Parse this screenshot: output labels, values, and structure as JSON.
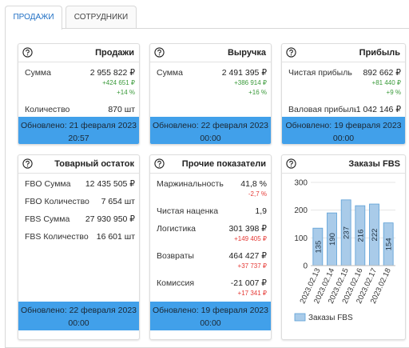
{
  "tabs": [
    "ПРОДАЖИ",
    "СОТРУДНИКИ"
  ],
  "cards": [
    {
      "title": "Продажи",
      "rows": [
        {
          "label": "Сумма",
          "value": "2 955 822 ₽",
          "changes": [
            "+424 651 ₽",
            "+14 %"
          ],
          "color": "#3a9a3a"
        },
        {
          "label": "Количество",
          "value": "870 шт"
        }
      ],
      "updated": "Обновлено: 21 февраля 2023",
      "time": "20:57"
    },
    {
      "title": "Выручка",
      "rows": [
        {
          "label": "Сумма",
          "value": "2 491 395 ₽",
          "changes": [
            "+386 914 ₽",
            "+16 %"
          ],
          "color": "#3a9a3a"
        }
      ],
      "updated": "Обновлено: 22 февраля 2023",
      "time": "00:00"
    },
    {
      "title": "Прибыль",
      "rows": [
        {
          "label": "Чистая прибыль",
          "value": "892 662 ₽",
          "changes": [
            "+81 440 ₽",
            "+9 %"
          ],
          "color": "#3a9a3a"
        },
        {
          "label": "Валовая прибыль",
          "value": "1 042 146 ₽"
        }
      ],
      "updated": "Обновлено: 19 февраля 2023",
      "time": "00:00"
    },
    {
      "title": "Товарный остаток",
      "rows": [
        {
          "label": "FBO Сумма",
          "value": "12 435 505 ₽"
        },
        {
          "label": "FBO Количество",
          "value": "7 654 шт"
        },
        {
          "label": "FBS Сумма",
          "value": "27 930 950 ₽"
        },
        {
          "label": "FBS Количество",
          "value": "16 601 шт"
        }
      ],
      "updated": "Обновлено: 22 февраля 2023",
      "time": "00:00"
    },
    {
      "title": "Прочие показатели",
      "rows": [
        {
          "label": "Маржинальность",
          "value": "41,8 %",
          "changes": [
            "-2,7 %"
          ],
          "color": "#e53935"
        },
        {
          "label": "Чистая наценка",
          "value": "1,9"
        },
        {
          "label": "Логистика",
          "value": "301 398 ₽",
          "changes": [
            "+149 405 ₽"
          ],
          "color": "#e53935"
        },
        {
          "label": "Возвраты",
          "value": "464 427 ₽",
          "changes": [
            "+37 737 ₽"
          ],
          "color": "#e53935"
        },
        {
          "label": "Комиссия",
          "value": "-21 007 ₽",
          "changes": [
            "+17 341 ₽"
          ],
          "color": "#e53935"
        }
      ],
      "updated": "Обновлено: 19 февраля 2023",
      "time": "00:00"
    }
  ],
  "chart_data": {
    "type": "bar",
    "title": "Заказы FBS",
    "categories": [
      "2023.02.13",
      "2023.02.14",
      "2023.02.15",
      "2023.02.16",
      "2023.02.17",
      "2023.02.18"
    ],
    "series": [
      {
        "name": "Заказы FBS",
        "color": "#a9cbe9",
        "values": [
          135,
          190,
          237,
          216,
          222,
          154
        ]
      }
    ],
    "ylim": [
      0,
      300
    ],
    "yticks": [
      0,
      100,
      200,
      300
    ],
    "grid": true,
    "legend": "bottom"
  }
}
